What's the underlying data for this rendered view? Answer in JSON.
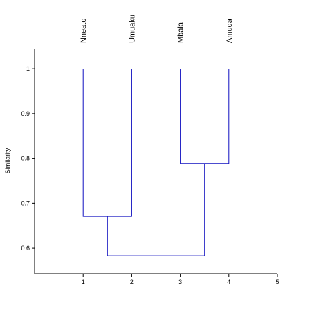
{
  "chart_data": {
    "type": "dendrogram",
    "y_label": "Similarity",
    "categories": [
      "Nneato",
      "Umuaku",
      "Mbala",
      "Amuda"
    ],
    "x": [
      1,
      2,
      3,
      4
    ],
    "leaf_height": 1,
    "merges": [
      {
        "children": [
          0,
          1
        ],
        "height": 0.671
      },
      {
        "children": [
          2,
          3
        ],
        "height": 0.789
      },
      {
        "children": [
          4,
          5
        ],
        "height": 0.583
      }
    ],
    "color": "#1010c0",
    "xlim": [
      0,
      5
    ],
    "xticks": [
      1,
      2,
      3,
      4,
      5
    ],
    "ylim": [
      0.543,
      1.045
    ],
    "yticks": [
      0.6,
      0.7,
      0.8,
      0.9,
      1
    ]
  }
}
